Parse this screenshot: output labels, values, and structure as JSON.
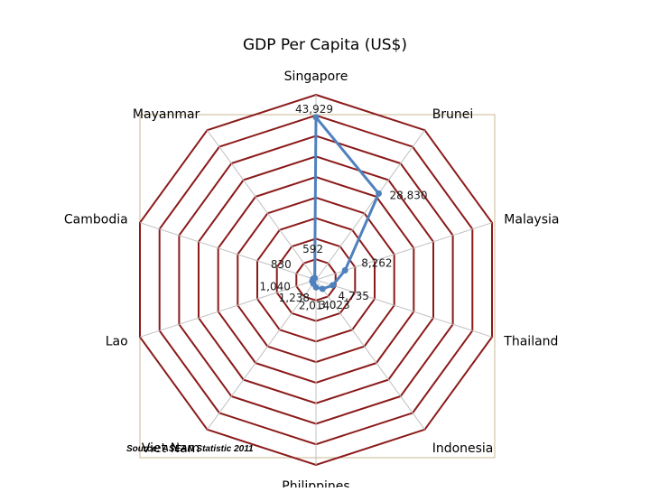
{
  "chart_data": {
    "type": "radar",
    "title": "GDP Per Capita (US$)",
    "categories": [
      "Singapore",
      "Brunei",
      "Malaysia",
      "Thailand",
      "Indonesia",
      "Philippines",
      "Viet Nam",
      "Lao",
      "Cambodia",
      "Mayanmar"
    ],
    "values": [
      43929,
      28830,
      8262,
      4735,
      3023,
      2014,
      1238,
      1040,
      830,
      592
    ],
    "data_labels": [
      "43,929",
      "28,830",
      "8,262",
      "4,735",
      "3,023",
      "2,014",
      "1,238",
      "1,040",
      "830",
      "592"
    ],
    "rlim": [
      0,
      50000
    ],
    "rings": 9,
    "colors": {
      "series": "#4f81bd",
      "grid": "#8b1a1a",
      "axis": "#c0c0c0",
      "plot_border": "#c9b890"
    },
    "grid": true,
    "source": "Source: ASEAN Statistic  2011"
  }
}
